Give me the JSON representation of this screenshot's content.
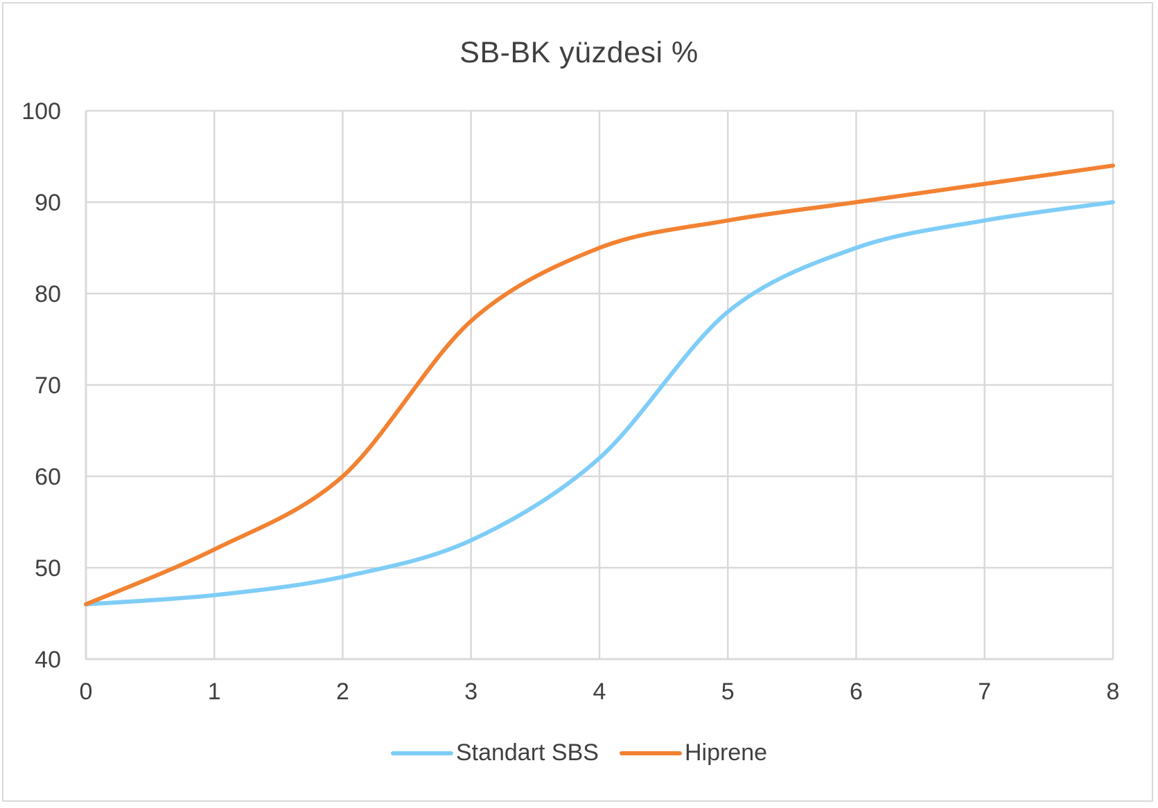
{
  "chart_data": {
    "type": "line",
    "title": "SB-BK yüzdesi %",
    "xlabel": "",
    "ylabel": "",
    "x": [
      0,
      1,
      2,
      3,
      4,
      5,
      6,
      7,
      8
    ],
    "xlim": [
      0,
      8
    ],
    "ylim": [
      40,
      100
    ],
    "xticks": [
      "0",
      "1",
      "2",
      "3",
      "4",
      "5",
      "6",
      "7",
      "8"
    ],
    "yticks": [
      "40",
      "50",
      "60",
      "70",
      "80",
      "90",
      "100"
    ],
    "grid": true,
    "smooth": true,
    "legend_position": "bottom",
    "series": [
      {
        "name": "Standart SBS",
        "color": "#7fcdf7",
        "values": [
          46,
          47,
          49,
          53,
          62,
          78,
          85,
          88,
          90
        ]
      },
      {
        "name": "Hiprene",
        "color": "#f28232",
        "values": [
          46,
          52,
          60,
          77,
          85,
          88,
          90,
          92,
          94
        ]
      }
    ]
  },
  "colors": {
    "grid": "#d9d9d9",
    "text": "#404040",
    "frame": "#d9d9d9"
  }
}
